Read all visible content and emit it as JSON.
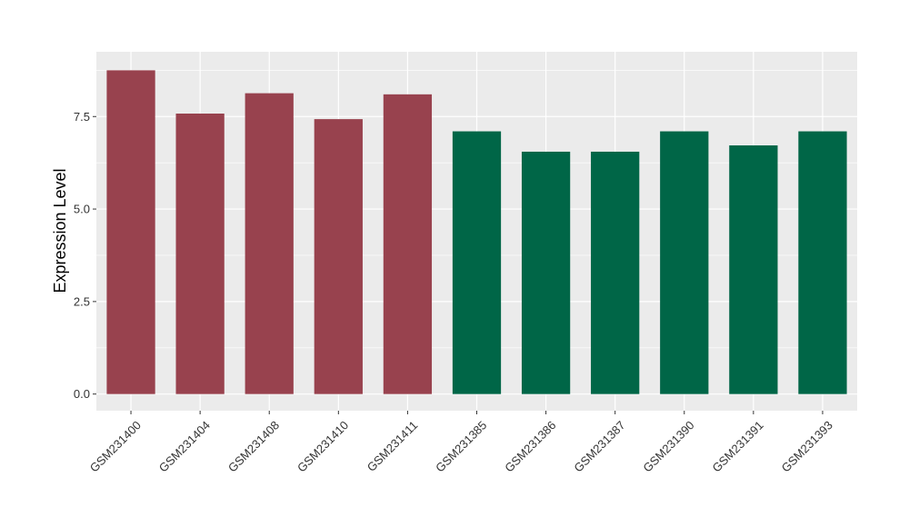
{
  "chart_data": {
    "type": "bar",
    "title": "",
    "xlabel": "",
    "ylabel": "Expression Level",
    "ylim": [
      -0.45,
      9.25
    ],
    "yticks": [
      0.0,
      2.5,
      5.0,
      7.5
    ],
    "ytick_labels": [
      "0.0",
      "2.5",
      "5.0",
      "7.5"
    ],
    "grid": true,
    "legend": "none",
    "categories": [
      "GSM231400",
      "GSM231404",
      "GSM231408",
      "GSM231410",
      "GSM231411",
      "GSM231385",
      "GSM231386",
      "GSM231387",
      "GSM231390",
      "GSM231391",
      "GSM231393"
    ],
    "values": [
      8.75,
      7.58,
      8.13,
      7.43,
      8.1,
      7.1,
      6.55,
      6.55,
      7.1,
      6.72,
      7.1
    ],
    "bar_colors": [
      "#98424e",
      "#98424e",
      "#98424e",
      "#98424e",
      "#98424e",
      "#006647",
      "#006647",
      "#006647",
      "#006647",
      "#006647",
      "#006647"
    ],
    "panel_background": "#ebebeb",
    "grid_color": "#ffffff"
  }
}
